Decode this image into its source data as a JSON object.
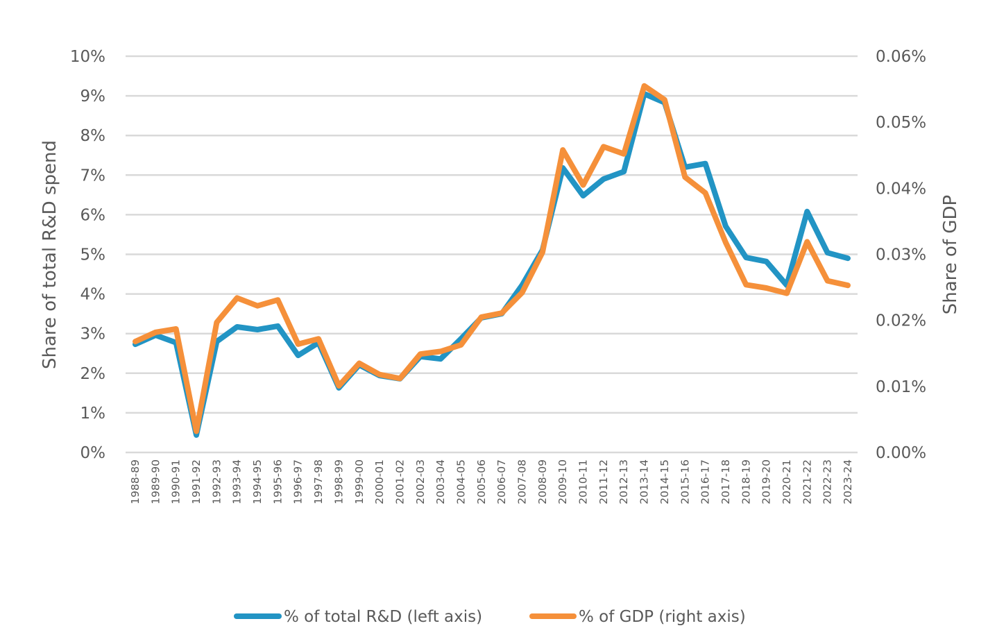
{
  "chart_data": {
    "type": "line",
    "title": "",
    "xlabel": "",
    "ylabel": "Share of total R&D spend",
    "y2label": "Share of GDP",
    "ylim": [
      0,
      10
    ],
    "y2lim": [
      0,
      0.06
    ],
    "grid": true,
    "legend_position": "bottom",
    "left_ticks": [
      "0%",
      "1%",
      "2%",
      "3%",
      "4%",
      "5%",
      "6%",
      "7%",
      "8%",
      "9%",
      "10%"
    ],
    "right_ticks": [
      "0.00%",
      "0.01%",
      "0.02%",
      "0.03%",
      "0.04%",
      "0.05%",
      "0.06%"
    ],
    "categories": [
      "1988-89",
      "1989-90",
      "1990-91",
      "1991-92",
      "1992-93",
      "1993-94",
      "1994-95",
      "1995-96",
      "1996-97",
      "1997-98",
      "1998-99",
      "1999-00",
      "2000-01",
      "2001-02",
      "2002-03",
      "2003-04",
      "2004-05",
      "2005-06",
      "2006-07",
      "2007-08",
      "2008-09",
      "2009-10",
      "2010-11",
      "2011-12",
      "2012-13",
      "2013-14",
      "2014-15",
      "2015-16",
      "2016-17",
      "2017-18",
      "2018-19",
      "2019-20",
      "2020-21",
      "2021-22",
      "2022-23",
      "2023-24"
    ],
    "series": [
      {
        "name": "% of total R&D (left axis)",
        "axis": "left",
        "color": "#2294c4",
        "values": [
          2.73,
          2.96,
          2.77,
          0.44,
          2.8,
          3.17,
          3.1,
          3.19,
          2.45,
          2.77,
          1.63,
          2.21,
          1.94,
          1.86,
          2.42,
          2.36,
          2.87,
          3.4,
          3.5,
          4.22,
          5.11,
          7.18,
          6.48,
          6.9,
          7.09,
          9.05,
          8.83,
          7.2,
          7.29,
          5.71,
          4.92,
          4.82,
          4.22,
          6.08,
          5.04,
          4.9
        ]
      },
      {
        "name": "% of GDP (right axis)",
        "axis": "right",
        "color": "#f5903a",
        "values": [
          0.0168,
          0.0182,
          0.0187,
          0.0032,
          0.0197,
          0.0234,
          0.0222,
          0.0231,
          0.0164,
          0.0172,
          0.0101,
          0.0135,
          0.0118,
          0.0112,
          0.0149,
          0.0153,
          0.0163,
          0.0205,
          0.0211,
          0.0242,
          0.0303,
          0.0458,
          0.0405,
          0.0463,
          0.0452,
          0.0555,
          0.0534,
          0.0417,
          0.0393,
          0.0318,
          0.0254,
          0.0249,
          0.0241,
          0.0319,
          0.026,
          0.0253
        ]
      }
    ]
  }
}
